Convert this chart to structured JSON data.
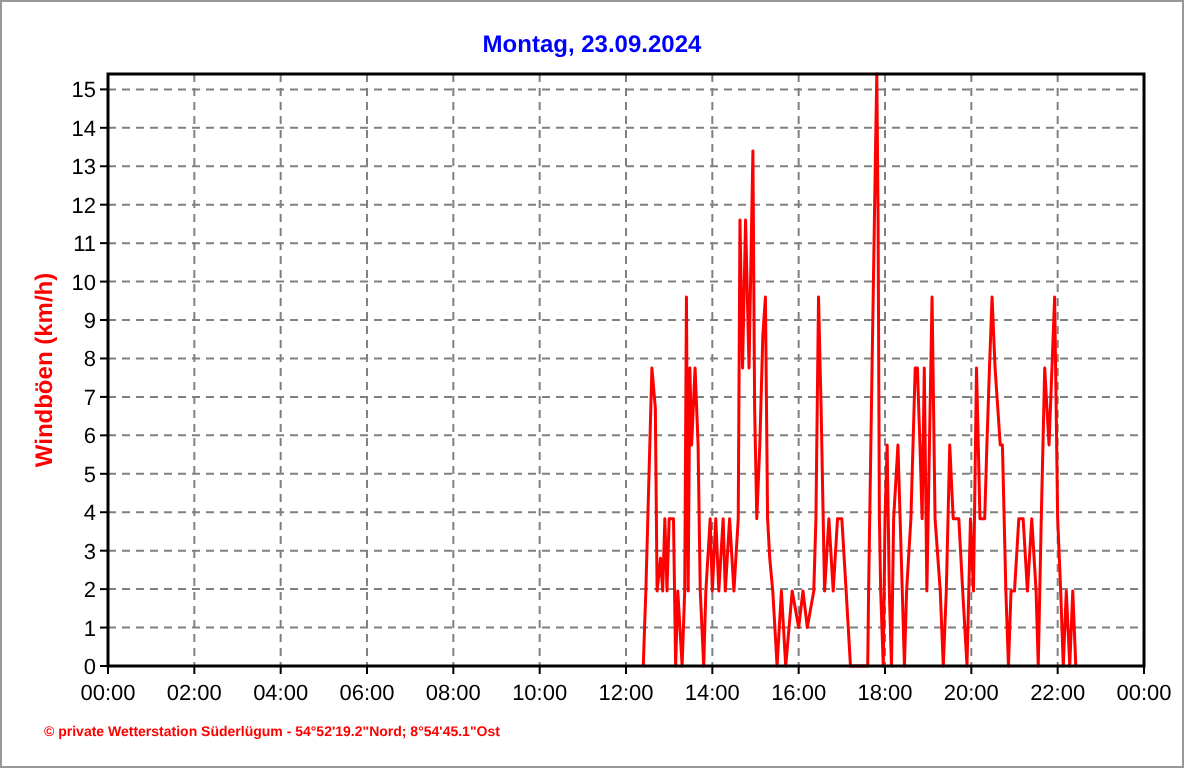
{
  "chart_data": {
    "type": "line",
    "title": "Montag, 23.09.2024",
    "ylabel": "Windböen (km/h)",
    "annotations": [
      "© private Wetterstation Süderlügum - 54°52'19.2\"Nord; 8°54'45.1\"Ost"
    ],
    "xlim": [
      0,
      24
    ],
    "xticks": [
      {
        "value": 0,
        "label": "00:00"
      },
      {
        "value": 2,
        "label": "02:00"
      },
      {
        "value": 4,
        "label": "04:00"
      },
      {
        "value": 6,
        "label": "06:00"
      },
      {
        "value": 8,
        "label": "08:00"
      },
      {
        "value": 10,
        "label": "10:00"
      },
      {
        "value": 12,
        "label": "12:00"
      },
      {
        "value": 14,
        "label": "14:00"
      },
      {
        "value": 16,
        "label": "16:00"
      },
      {
        "value": 18,
        "label": "18:00"
      },
      {
        "value": 20,
        "label": "20:00"
      },
      {
        "value": 22,
        "label": "22:00"
      },
      {
        "value": 24,
        "label": "00:00"
      }
    ],
    "ylim": [
      0,
      15.4
    ],
    "yticks": [
      0,
      1,
      2,
      3,
      4,
      5,
      6,
      7,
      8,
      9,
      10,
      11,
      12,
      13,
      14,
      15
    ],
    "grid": true,
    "marker": "none",
    "line_style": "solid",
    "series": [
      {
        "color": "#ff0000",
        "x": [
          12.4,
          12.43,
          12.46,
          12.6,
          12.68,
          12.72,
          12.8,
          12.85,
          12.9,
          12.95,
          13.0,
          13.1,
          13.15,
          13.2,
          13.3,
          13.36,
          13.4,
          13.44,
          13.48,
          13.52,
          13.6,
          13.67,
          13.72,
          13.8,
          13.85,
          13.95,
          14.0,
          14.08,
          14.15,
          14.25,
          14.3,
          14.4,
          14.5,
          14.6,
          14.64,
          14.7,
          14.77,
          14.85,
          14.94,
          14.98,
          15.03,
          15.1,
          15.17,
          15.23,
          15.28,
          15.33,
          15.4,
          15.5,
          15.6,
          15.7,
          15.85,
          16.0,
          16.1,
          16.2,
          16.35,
          16.4,
          16.46,
          16.52,
          16.6,
          16.7,
          16.8,
          16.9,
          17.0,
          17.1,
          17.2,
          17.6,
          17.62,
          17.7,
          17.78,
          17.81,
          17.84,
          17.87,
          17.9,
          17.96,
          18.0,
          18.05,
          18.1,
          18.15,
          18.2,
          18.3,
          18.4,
          18.45,
          18.5,
          18.6,
          18.7,
          18.75,
          18.81,
          18.86,
          18.91,
          18.97,
          19.09,
          19.16,
          19.28,
          19.35,
          19.42,
          19.5,
          19.58,
          19.71,
          19.8,
          19.9,
          19.98,
          20.05,
          20.12,
          20.2,
          20.31,
          20.36,
          20.42,
          20.48,
          20.55,
          20.67,
          20.72,
          20.8,
          20.86,
          20.92,
          21.0,
          21.1,
          21.2,
          21.3,
          21.4,
          21.5,
          21.55,
          21.62,
          21.7,
          21.8,
          21.93,
          22.0,
          22.07,
          22.13,
          22.2,
          22.28,
          22.35,
          22.42
        ],
        "values": [
          0,
          1,
          1.95,
          7.75,
          6.7,
          1.95,
          2.8,
          1.95,
          3.83,
          1.95,
          3.83,
          3.83,
          0,
          1.95,
          0,
          1.95,
          9.6,
          1.95,
          7.75,
          5.75,
          7.75,
          5.75,
          1.95,
          0,
          1.95,
          3.83,
          1.95,
          3.83,
          1.95,
          3.83,
          1.95,
          3.83,
          1.95,
          3.83,
          11.6,
          7.75,
          11.6,
          7.75,
          13.4,
          6.7,
          3.83,
          5.75,
          8.6,
          9.6,
          3.83,
          2.8,
          1.95,
          0,
          1.95,
          0,
          1.95,
          1,
          1.95,
          1,
          1.95,
          3.83,
          9.6,
          6.7,
          1.95,
          3.83,
          1.95,
          3.83,
          3.83,
          1.95,
          0,
          0,
          1.95,
          7.75,
          13.4,
          15.4,
          11.6,
          3.83,
          1.95,
          0,
          3.83,
          5.75,
          1.95,
          0,
          3.83,
          5.75,
          1.95,
          0,
          1.95,
          3.83,
          7.75,
          7.75,
          5.75,
          3.83,
          7.75,
          1.95,
          9.6,
          3.83,
          1.95,
          0,
          1.95,
          5.75,
          3.83,
          3.83,
          1.95,
          0,
          3.83,
          1.95,
          7.75,
          3.83,
          3.83,
          5.75,
          7.75,
          9.6,
          7.75,
          5.75,
          5.75,
          1.95,
          0,
          1.95,
          1.95,
          3.83,
          3.83,
          1.95,
          3.83,
          1.95,
          0,
          3.83,
          7.75,
          5.75,
          9.6,
          3.83,
          1.95,
          0,
          1.95,
          0,
          1.95,
          0
        ]
      }
    ]
  }
}
